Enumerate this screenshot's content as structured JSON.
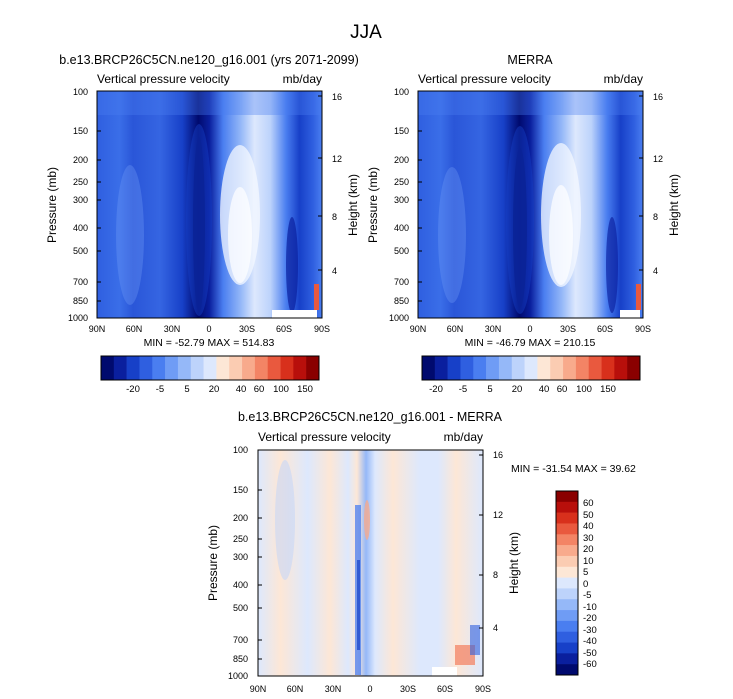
{
  "figure_title": "JJA",
  "colors": {
    "top_scale": [
      "#000a6e",
      "#0a1f9e",
      "#1740c8",
      "#2f5fe0",
      "#4a7ef0",
      "#6f9cf5",
      "#95b8f8",
      "#bdd3fb",
      "#dde8fd",
      "#fde7d6",
      "#fbccb2",
      "#f8aa8c",
      "#f38465",
      "#e9593e",
      "#d8301c",
      "#b80f0b",
      "#8a0000"
    ],
    "diff_scale": [
      "#000a6e",
      "#0a1f9e",
      "#1740c8",
      "#2f5fe0",
      "#4a7ef0",
      "#6f9cf5",
      "#95b8f8",
      "#bdd3fb",
      "#dde8fd",
      "#fde7d6",
      "#fbccb2",
      "#f8aa8c",
      "#f38465",
      "#e9593e",
      "#d8301c",
      "#b80f0b",
      "#8a0000"
    ]
  },
  "chart_data": [
    {
      "type": "heatmap",
      "title": "b.e13.BRCP26C5CN.ne120_g16.001 (yrs 2071-2099)",
      "subtitle_left": "Vertical pressure velocity",
      "subtitle_right": "mb/day",
      "ylabel": "Pressure (mb)",
      "ylabel_right": "Height (km)",
      "x_ticks": [
        "90N",
        "60N",
        "30N",
        "0",
        "30S",
        "60S",
        "90S"
      ],
      "y_ticks": [
        "100",
        "150",
        "200",
        "250",
        "300",
        "400",
        "500",
        "700",
        "850",
        "1000"
      ],
      "y_ticks_right": [
        "16",
        "12",
        "8",
        "4"
      ],
      "stats": "MIN = -52.79  MAX = 514.83",
      "colorbar_labels": [
        "-20",
        "-5",
        "5",
        "20",
        "40",
        "60",
        "100",
        "150"
      ]
    },
    {
      "type": "heatmap",
      "title": "MERRA",
      "subtitle_left": "Vertical pressure velocity",
      "subtitle_right": "mb/day",
      "ylabel": "Pressure (mb)",
      "ylabel_right": "Height (km)",
      "x_ticks": [
        "90N",
        "60N",
        "30N",
        "0",
        "30S",
        "60S",
        "90S"
      ],
      "y_ticks": [
        "100",
        "150",
        "200",
        "250",
        "300",
        "400",
        "500",
        "700",
        "850",
        "1000"
      ],
      "y_ticks_right": [
        "16",
        "12",
        "8",
        "4"
      ],
      "stats": "MIN = -46.79  MAX = 210.15",
      "colorbar_labels": [
        "-20",
        "-5",
        "5",
        "20",
        "40",
        "60",
        "100",
        "150"
      ]
    },
    {
      "type": "heatmap",
      "title": "b.e13.BRCP26C5CN.ne120_g16.001 - MERRA",
      "subtitle_left": "Vertical pressure velocity",
      "subtitle_right": "mb/day",
      "ylabel": "Pressure (mb)",
      "ylabel_right": "Height (km)",
      "x_ticks": [
        "90N",
        "60N",
        "30N",
        "0",
        "30S",
        "60S",
        "90S"
      ],
      "y_ticks": [
        "100",
        "150",
        "200",
        "250",
        "300",
        "400",
        "500",
        "700",
        "850",
        "1000"
      ],
      "y_ticks_right": [
        "16",
        "12",
        "8",
        "4"
      ],
      "stats": "MIN = -31.54  MAX = 39.62",
      "colorbar_labels": [
        "60",
        "50",
        "40",
        "30",
        "20",
        "10",
        "5",
        "0",
        "-5",
        "-10",
        "-20",
        "-30",
        "-40",
        "-50",
        "-60"
      ]
    }
  ]
}
